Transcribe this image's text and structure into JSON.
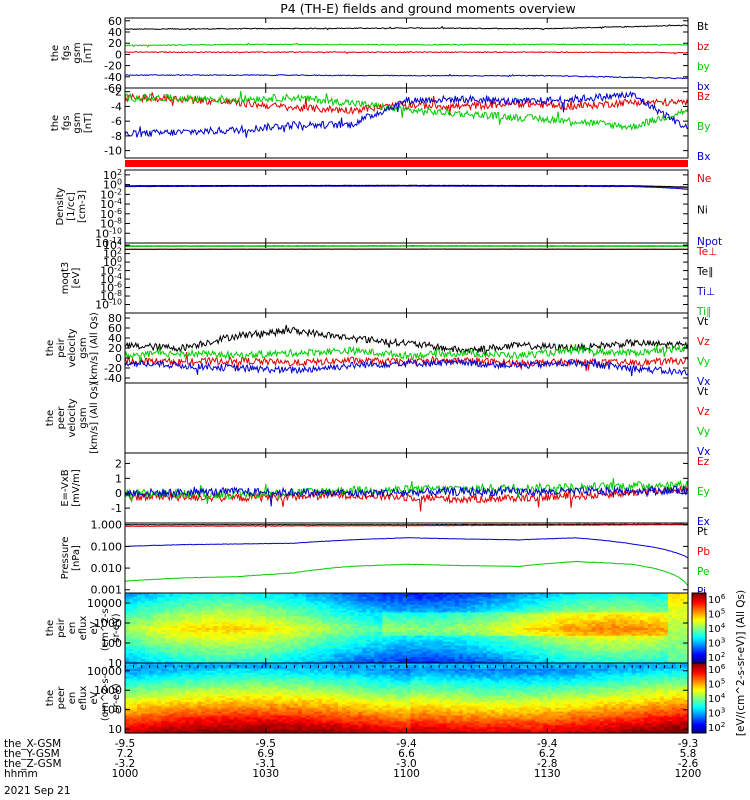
{
  "title": "P4 (TH-E) fields and ground moments overview",
  "date_label": "2021 Sep 21",
  "xaxis": {
    "row_labels": [
      "the_X-GSM",
      "the_Y-GSM",
      "the_Z-GSM",
      "hhmm"
    ],
    "ticks": [
      {
        "vals": [
          "-9.5",
          "7.2",
          "-3.2",
          "1000"
        ]
      },
      {
        "vals": [
          "-9.5",
          "6.9",
          "-3.1",
          "1030"
        ]
      },
      {
        "vals": [
          "-9.4",
          "6.6",
          "-3.0",
          "1100"
        ]
      },
      {
        "vals": [
          "-9.4",
          "6.2",
          "-2.8",
          "1130"
        ]
      },
      {
        "vals": [
          "-9.3",
          "5.8",
          "-2.6",
          "1200"
        ]
      }
    ]
  },
  "colors": {
    "black": "#000000",
    "red": "#e00000",
    "green": "#00cc00",
    "blue": "#0000cc"
  },
  "colorbar": {
    "label": "[eV/(cm^2-s-sr-eV)] (All Qs)",
    "upper_ticks": [
      "10^6",
      "10^5",
      "10^4",
      "10^3",
      "10^2"
    ],
    "lower_ticks": [
      "10^6",
      "10^5",
      "10^4",
      "10^3",
      "10^2"
    ]
  },
  "chart_data": [
    {
      "type": "line",
      "panel": "fgs-total",
      "ylabel": [
        "the",
        "fgs",
        "gsm",
        "[nT]"
      ],
      "ylim": [
        -60,
        65
      ],
      "yticks": [
        "60",
        "40",
        "20",
        "0",
        "-20",
        "-40",
        "-60"
      ],
      "series": [
        {
          "name": "Bt",
          "color": "#000000",
          "x": [
            0,
            0.25,
            0.5,
            0.75,
            1
          ],
          "values": [
            45,
            46,
            47,
            46,
            52
          ]
        },
        {
          "name": "bz",
          "color": "#e00000",
          "x": [
            0,
            0.25,
            0.5,
            0.75,
            1
          ],
          "values": [
            4,
            4,
            4,
            4,
            3
          ]
        },
        {
          "name": "by",
          "color": "#00cc00",
          "x": [
            0,
            0.25,
            0.5,
            0.75,
            1
          ],
          "values": [
            16,
            18,
            17,
            18,
            17
          ]
        },
        {
          "name": "bx",
          "color": "#0000cc",
          "x": [
            0,
            0.25,
            0.5,
            0.75,
            1
          ],
          "values": [
            -37,
            -37,
            -38,
            -38,
            -43
          ]
        }
      ]
    },
    {
      "type": "line",
      "panel": "fgs-components",
      "ylabel": [
        "the",
        "fgs",
        "gsm",
        "[nT]"
      ],
      "ylim": [
        -11,
        -1.5
      ],
      "yticks": [
        "-2",
        "-4",
        "-6",
        "-8",
        "-10"
      ],
      "series": [
        {
          "name": "Bz",
          "color": "#e00000",
          "x": [
            0,
            0.1,
            0.2,
            0.3,
            0.4,
            0.5,
            0.6,
            0.7,
            0.8,
            0.9,
            1
          ],
          "values": [
            -2.8,
            -3.0,
            -3.5,
            -4.2,
            -4.5,
            -3.8,
            -4.0,
            -3.6,
            -4.0,
            -3.4,
            -3.5
          ]
        },
        {
          "name": "By",
          "color": "#00cc00",
          "x": [
            0,
            0.1,
            0.2,
            0.3,
            0.4,
            0.5,
            0.6,
            0.7,
            0.8,
            0.9,
            1
          ],
          "values": [
            -2.8,
            -2.9,
            -3.0,
            -2.8,
            -3.5,
            -4.5,
            -5.0,
            -5.5,
            -6.0,
            -6.8,
            -4.5
          ]
        },
        {
          "name": "Bx",
          "color": "#0000cc",
          "x": [
            0,
            0.1,
            0.2,
            0.3,
            0.4,
            0.5,
            0.6,
            0.7,
            0.8,
            0.9,
            1
          ],
          "values": [
            -7.8,
            -7.5,
            -7.2,
            -6.5,
            -6.5,
            -3.2,
            -3.0,
            -3.4,
            -3.0,
            -2.4,
            -7.0
          ]
        }
      ]
    },
    {
      "type": "line",
      "panel": "density",
      "ylabel": [
        "Density",
        "[1/cc]",
        "[cm-3]"
      ],
      "ylog": true,
      "ylim": [
        -12,
        3
      ],
      "yticks": [
        "10^2",
        "10^0",
        "10^-2",
        "10^-4",
        "10^-6",
        "10^-8",
        "10^-10",
        "10^-12"
      ],
      "series": [
        {
          "name": "Ne",
          "color": "#e00000",
          "x": [
            0,
            0.5,
            0.9,
            1
          ],
          "values": [
            0.5,
            0.6,
            0.5,
            0.2
          ]
        },
        {
          "name": "Ni",
          "color": "#000000",
          "x": [
            0,
            0.5,
            0.9,
            1
          ],
          "values": [
            0.6,
            0.7,
            0.6,
            0.3
          ]
        },
        {
          "name": "Npot",
          "color": "#0000cc",
          "x": [
            0,
            0.5,
            0.9,
            1
          ],
          "values": [
            0.4,
            0.5,
            0.4,
            0.1
          ]
        }
      ]
    },
    {
      "type": "line",
      "panel": "temperature",
      "ylabel": [
        "moqt3",
        "[eV]"
      ],
      "ylog": true,
      "ylim": [
        -12,
        4.5
      ],
      "yticks": [
        "10^4",
        "10^2",
        "10^0",
        "10^-2",
        "10^-4",
        "10^-6",
        "10^-8",
        "10^-10"
      ],
      "series": [
        {
          "name": "Te⊥",
          "color": "#e00000",
          "x": [
            0,
            0.5,
            1
          ],
          "values": [
            1000,
            1100,
            1000
          ]
        },
        {
          "name": "Te∥",
          "color": "#000000",
          "x": [
            0,
            0.5,
            1
          ],
          "values": [
            1100,
            1200,
            1100
          ]
        },
        {
          "name": "Ti⊥",
          "color": "#0000cc",
          "x": [
            0,
            0.5,
            1
          ],
          "values": [
            6000,
            6500,
            6000
          ]
        },
        {
          "name": "Ti∥",
          "color": "#00cc00",
          "x": [
            0,
            0.5,
            1
          ],
          "values": [
            5000,
            5500,
            5000
          ]
        }
      ]
    },
    {
      "type": "line",
      "panel": "peir-velocity",
      "ylabel": [
        "the",
        "peir",
        "velocity",
        "gsm",
        "[km/s] (All Qs)"
      ],
      "ylim": [
        -50,
        90
      ],
      "yticks": [
        "80",
        "60",
        "40",
        "20",
        "0",
        "-20",
        "-40"
      ],
      "series": [
        {
          "name": "Vt",
          "color": "#000000",
          "x": [
            0,
            0.1,
            0.2,
            0.3,
            0.4,
            0.5,
            0.6,
            0.7,
            0.8,
            0.9,
            1
          ],
          "values": [
            25,
            20,
            45,
            55,
            40,
            30,
            15,
            25,
            20,
            30,
            25
          ]
        },
        {
          "name": "Vz",
          "color": "#e00000",
          "x": [
            0,
            0.1,
            0.2,
            0.3,
            0.4,
            0.5,
            0.6,
            0.7,
            0.8,
            0.9,
            1
          ],
          "values": [
            -5,
            -8,
            -5,
            -10,
            -5,
            -8,
            -5,
            -10,
            -8,
            -10,
            -5
          ]
        },
        {
          "name": "Vy",
          "color": "#00cc00",
          "x": [
            0,
            0.1,
            0.2,
            0.3,
            0.4,
            0.5,
            0.6,
            0.7,
            0.8,
            0.9,
            1
          ],
          "values": [
            5,
            10,
            5,
            10,
            15,
            5,
            10,
            5,
            15,
            10,
            20
          ]
        },
        {
          "name": "Vx",
          "color": "#0000cc",
          "x": [
            0,
            0.1,
            0.2,
            0.3,
            0.4,
            0.5,
            0.6,
            0.7,
            0.8,
            0.9,
            1
          ],
          "values": [
            -10,
            -15,
            -20,
            -25,
            -15,
            -10,
            -10,
            -15,
            -10,
            -20,
            -30
          ]
        }
      ]
    },
    {
      "type": "line",
      "panel": "peer-velocity",
      "ylabel": [
        "the",
        "peer",
        "velocity",
        "gsm",
        "[km/s] (All Qs)"
      ],
      "ylim": [
        0,
        1
      ],
      "yticks": [],
      "series": [
        {
          "name": "Vt",
          "color": "#000000",
          "x": [],
          "values": []
        },
        {
          "name": "Vz",
          "color": "#e00000",
          "x": [],
          "values": []
        },
        {
          "name": "Vy",
          "color": "#00cc00",
          "x": [],
          "values": []
        },
        {
          "name": "Vx",
          "color": "#0000cc",
          "x": [],
          "values": []
        }
      ]
    },
    {
      "type": "line",
      "panel": "efield",
      "ylabel": [
        "E=-VxB",
        "[mV/m]"
      ],
      "ylim": [
        -2,
        2.7
      ],
      "yticks": [
        "2",
        "1",
        "0",
        "-1"
      ],
      "series": [
        {
          "name": "Ez",
          "color": "#e00000",
          "x": [
            0,
            0.2,
            0.4,
            0.6,
            0.8,
            1
          ],
          "values": [
            -0.2,
            -0.3,
            -0.1,
            -0.4,
            -0.2,
            0.3
          ]
        },
        {
          "name": "Ey",
          "color": "#00cc00",
          "x": [
            0,
            0.2,
            0.4,
            0.6,
            0.8,
            1
          ],
          "values": [
            0.0,
            -0.1,
            0.2,
            0.3,
            0.4,
            0.6
          ]
        },
        {
          "name": "Ex",
          "color": "#0000cc",
          "x": [
            0,
            0.2,
            0.4,
            0.6,
            0.8,
            1
          ],
          "values": [
            0.0,
            0.1,
            0.0,
            0.1,
            0.1,
            0.2
          ]
        }
      ]
    },
    {
      "type": "line",
      "panel": "pressure",
      "ylabel": [
        "Pressure",
        "[nPa]"
      ],
      "ylog": true,
      "ylim": [
        -3.15,
        0.08
      ],
      "yticks": [
        "1.000",
        "0.100",
        "0.010",
        "0.001"
      ],
      "series": [
        {
          "name": "Pt",
          "color": "#000000",
          "x": [
            0,
            0.5,
            1
          ],
          "values": [
            1.0,
            1.0,
            1.05
          ]
        },
        {
          "name": "Pb",
          "color": "#e00000",
          "x": [
            0,
            0.5,
            1
          ],
          "values": [
            0.85,
            0.9,
            1.0
          ]
        },
        {
          "name": "Pe",
          "color": "#00cc00",
          "x": [
            0,
            0.1,
            0.2,
            0.3,
            0.4,
            0.5,
            0.6,
            0.7,
            0.8,
            0.9,
            1
          ],
          "values": [
            0.0025,
            0.0035,
            0.004,
            0.006,
            0.012,
            0.015,
            0.013,
            0.012,
            0.02,
            0.015,
            0.0015
          ]
        },
        {
          "name": "Pi",
          "color": "#0000cc",
          "x": [
            0,
            0.1,
            0.2,
            0.3,
            0.4,
            0.5,
            0.6,
            0.7,
            0.8,
            0.9,
            1
          ],
          "values": [
            0.1,
            0.12,
            0.13,
            0.14,
            0.2,
            0.25,
            0.22,
            0.2,
            0.25,
            0.13,
            0.03
          ]
        }
      ]
    },
    {
      "type": "heatmap",
      "panel": "peir-en-eflux",
      "ylabel": [
        "the",
        "peir",
        "en",
        "eflux",
        "eV",
        "(cm^2-s-",
        "sr-eV)"
      ],
      "ylog": true,
      "ylim": [
        1,
        4.5
      ],
      "yticks": [
        "10000",
        "1000",
        "100",
        "10"
      ]
    },
    {
      "type": "heatmap",
      "panel": "peer-en-eflux",
      "ylabel": [
        "the",
        "peer",
        "en",
        "eflux",
        "eV",
        "(cm^2-s-",
        "sr-eV)"
      ],
      "ylog": true,
      "ylim": [
        0.8,
        4.4
      ],
      "yticks": [
        "10000",
        "1000",
        "100",
        "10"
      ]
    }
  ]
}
